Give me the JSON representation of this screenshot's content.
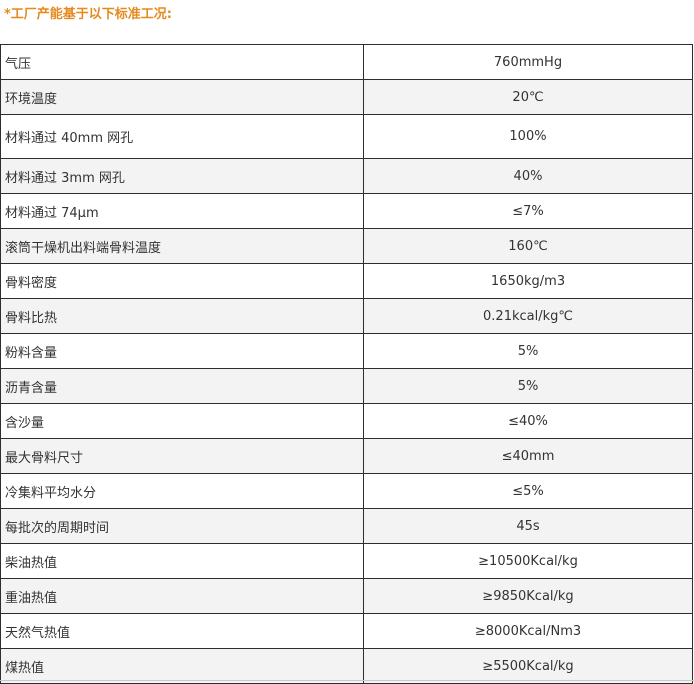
{
  "heading": "*工厂产能基于以下标准工况:",
  "rows": [
    {
      "label": "气压",
      "value": "760mmHg"
    },
    {
      "label": "环境温度",
      "value": "20℃"
    },
    {
      "label": "材料通过 40mm 网孔",
      "value": "100%"
    },
    {
      "label": "材料通过 3mm 网孔",
      "value": "40%"
    },
    {
      "label": "材料通过 74μm",
      "value": "≤7%"
    },
    {
      "label": "滚筒干燥机出料端骨料温度",
      "value": "160℃"
    },
    {
      "label": "骨料密度",
      "value": "1650kg/m3"
    },
    {
      "label": "骨料比热",
      "value": "0.21kcal/kg℃"
    },
    {
      "label": "粉料含量",
      "value": "5%"
    },
    {
      "label": "沥青含量",
      "value": "5%"
    },
    {
      "label": "含沙量",
      "value": "≤40%"
    },
    {
      "label": "最大骨料尺寸",
      "value": "≤40mm"
    },
    {
      "label": "冷集料平均水分",
      "value": "≤5%"
    },
    {
      "label": "每批次的周期时间",
      "value": "45s"
    },
    {
      "label": "柴油热值",
      "value": "≥10500Kcal/kg"
    },
    {
      "label": "重油热值",
      "value": "≥9850Kcal/kg"
    },
    {
      "label": "天然气热值",
      "value": "≥8000Kcal/Nm3"
    },
    {
      "label": "煤热值",
      "value": "≥5500Kcal/kg"
    }
  ]
}
